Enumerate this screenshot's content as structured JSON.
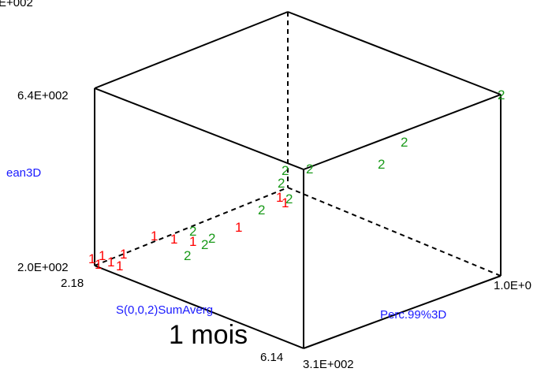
{
  "chart_data": {
    "type": "scatter",
    "projection": "3d",
    "axes": {
      "z": {
        "label": "ean3D",
        "ticks": [
          "2.0E+002",
          "6.4E+002"
        ],
        "top_cut_tick": "E+002"
      },
      "x": {
        "label": "S(0,0,2)SumAverg",
        "ticks": [
          "2.18",
          "6.14"
        ]
      },
      "y": {
        "label": "Perc.99%3D",
        "ticks": [
          "3.1E+002",
          "1.0E+0"
        ]
      }
    },
    "series": [
      {
        "name": "1",
        "color": "#ff0000",
        "points": [
          {
            "x": 2.4,
            "y": 0.0,
            "z": 0.0
          },
          {
            "x": 2.7,
            "y": 0.0,
            "z": 0.0
          },
          {
            "x": 2.9,
            "y": 0.0,
            "z": 0.0
          },
          {
            "x": 3.0,
            "y": 0.0,
            "z": 0.0
          },
          {
            "x": 3.3,
            "y": 0.0,
            "z": 0.0
          },
          {
            "x": 3.7,
            "y": 0.0,
            "z": 0.0
          },
          {
            "x": 4.1,
            "y": 0.0,
            "z": 0.0
          },
          {
            "x": 4.5,
            "y": 0.0,
            "z": 0.0
          },
          {
            "x": 4.9,
            "y": 0.0,
            "z": 0.0
          },
          {
            "x": 5.3,
            "y": 0.0,
            "z": 0.0
          },
          {
            "x": 5.7,
            "y": 0.0,
            "z": 0.0
          },
          {
            "x": 6.0,
            "y": 0.0,
            "z": 0.0
          }
        ]
      },
      {
        "name": "2",
        "color": "#1a9a1a",
        "points": [
          {
            "x": 3.5,
            "y": 0.0,
            "z": 0.0
          },
          {
            "x": 3.9,
            "y": 0.0,
            "z": 0.0
          },
          {
            "x": 4.2,
            "y": 0.0,
            "z": 0.0
          },
          {
            "x": 4.5,
            "y": 0.0,
            "z": 0.0
          },
          {
            "x": 5.0,
            "y": 0.0,
            "z": 0.0
          },
          {
            "x": 5.4,
            "y": 0.0,
            "z": 0.0
          },
          {
            "x": 5.8,
            "y": 0.0,
            "z": 0.0
          },
          {
            "x": 6.1,
            "y": 0.0,
            "z": 0.0
          },
          {
            "x": 6.1,
            "y": 0.0,
            "z": 0.0
          },
          {
            "x": 6.1,
            "y": 0.0,
            "z": 0.0
          },
          {
            "x": 6.1,
            "y": 0.0,
            "z": 0.0
          },
          {
            "x": 6.1,
            "y": 0.0,
            "z": 0.0
          }
        ]
      }
    ]
  },
  "caption": "1 mois"
}
